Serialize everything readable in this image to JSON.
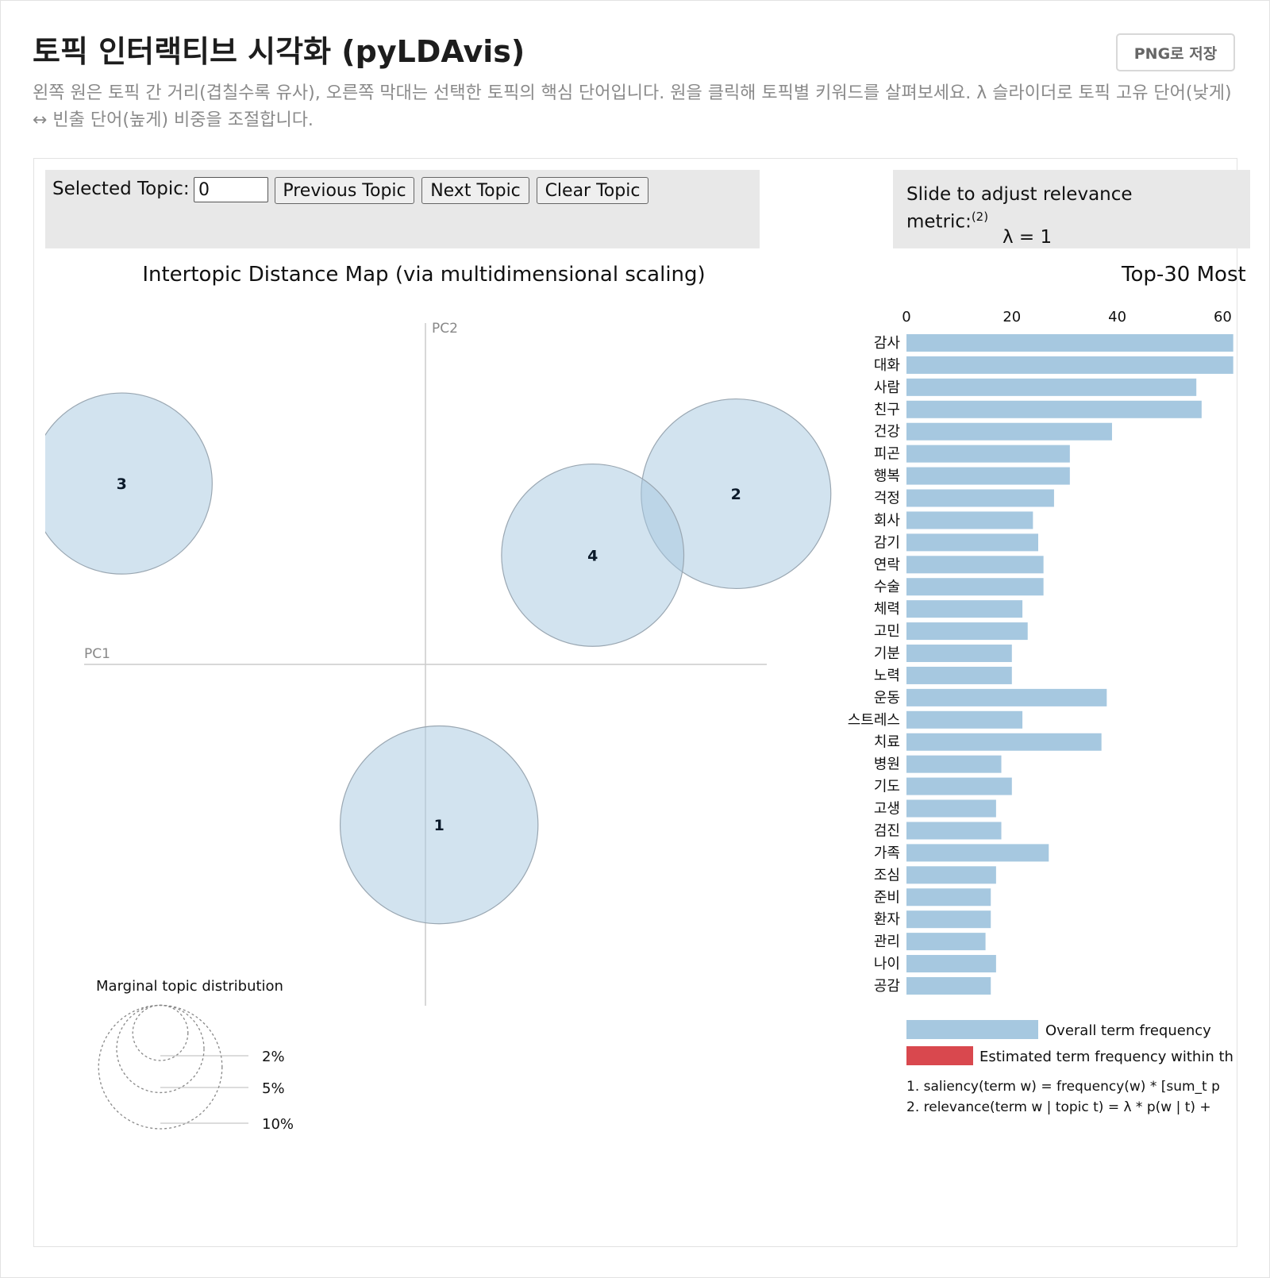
{
  "header": {
    "title": "토픽 인터랙티브 시각화 (pyLDAvis)",
    "save_label": "PNG로 저장",
    "description": "왼쪽 원은 토픽 간 거리(겹칠수록 유사), 오른쪽 막대는 선택한 토픽의 핵심 단어입니다. 원을 클릭해 토픽별 키워드를 살펴보세요. λ 슬라이더로 토픽 고유 단어(낮게) ↔ 빈출 단어(높게) 비중을 조절합니다."
  },
  "controls": {
    "selected_topic_label": "Selected Topic:",
    "selected_topic_value": "0",
    "prev_label": "Previous Topic",
    "next_label": "Next Topic",
    "clear_label": "Clear Topic"
  },
  "slider": {
    "label_line1": "Slide to adjust relevance",
    "label_line2": "metric:",
    "footnote_ref": "(2)",
    "lambda_text": "λ = 1",
    "lambda": 1
  },
  "colors": {
    "topic_circle": "#a6c8e0",
    "overall_bar": "#a6c8e0",
    "estimated_bar": "#d9484e",
    "axis": "#cccccc"
  },
  "chart_data": [
    {
      "type": "scatter",
      "title": "Intertopic Distance Map (via multidimensional scaling)",
      "xlabel": "PC1",
      "ylabel": "PC2",
      "topics": [
        {
          "id": "1",
          "pc1": 0.04,
          "pc2": -0.47,
          "size_pct": 8.6
        },
        {
          "id": "2",
          "pc1": 0.91,
          "pc2": 0.5,
          "size_pct": 7.9
        },
        {
          "id": "3",
          "pc1": -0.89,
          "pc2": 0.53,
          "size_pct": 7.2
        },
        {
          "id": "4",
          "pc1": 0.49,
          "pc2": 0.32,
          "size_pct": 7.3
        }
      ],
      "legend": {
        "title": "Marginal topic distribution",
        "levels": [
          {
            "label": "2%",
            "pct": 2
          },
          {
            "label": "5%",
            "pct": 5
          },
          {
            "label": "10%",
            "pct": 10
          }
        ]
      }
    },
    {
      "type": "bar",
      "orientation": "horizontal",
      "title": "Top-30 Most",
      "xlim": [
        0,
        60
      ],
      "xticks": [
        0,
        20,
        40,
        "60"
      ],
      "categories": [
        "감사",
        "대화",
        "사람",
        "친구",
        "건강",
        "피곤",
        "행복",
        "걱정",
        "회사",
        "감기",
        "연락",
        "수술",
        "체력",
        "고민",
        "기분",
        "노력",
        "운동",
        "스트레스",
        "치료",
        "병원",
        "기도",
        "고생",
        "검진",
        "가족",
        "조심",
        "준비",
        "환자",
        "관리",
        "나이",
        "공감"
      ],
      "series": [
        {
          "name": "Overall term frequency",
          "values": [
            62,
            62,
            55,
            56,
            39,
            31,
            31,
            28,
            24,
            25,
            26,
            26,
            22,
            23,
            20,
            20,
            38,
            22,
            37,
            18,
            20,
            17,
            18,
            27,
            17,
            16,
            16,
            15,
            17,
            16
          ]
        }
      ],
      "legend": [
        {
          "label": "Overall term frequency",
          "color": "#a6c8e0"
        },
        {
          "label": "Estimated term frequency within th",
          "color": "#d9484e"
        }
      ],
      "notes": [
        "1. saliency(term w) = frequency(w) * [sum_t p",
        "2. relevance(term w | topic t) = λ * p(w | t) + "
      ]
    }
  ]
}
